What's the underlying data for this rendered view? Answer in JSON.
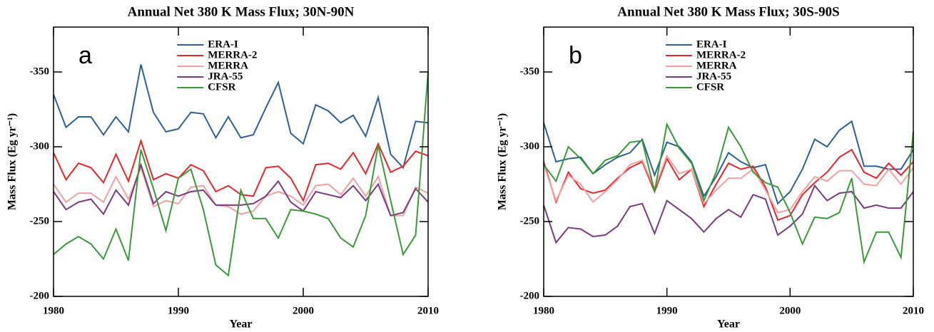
{
  "chart_data": [
    {
      "type": "line",
      "title": "Annual Net 380 K Mass Flux; 30N-90N",
      "annotation": "a",
      "x_label": "Year",
      "y_label": "Mass Flux (Eg yr⁻¹)",
      "xlim": [
        1980,
        2010
      ],
      "xticks": [
        1980,
        1990,
        2000,
        2010
      ],
      "ylim": [
        -200,
        -380
      ],
      "yticks": [
        -200,
        -250,
        -300,
        -350
      ],
      "legend": "upper center",
      "x": [
        1980,
        1981,
        1982,
        1983,
        1984,
        1985,
        1986,
        1987,
        1988,
        1989,
        1990,
        1991,
        1992,
        1993,
        1994,
        1995,
        1996,
        1997,
        1998,
        1999,
        2000,
        2001,
        2002,
        2003,
        2004,
        2005,
        2006,
        2007,
        2008,
        2009,
        2010
      ],
      "series": [
        {
          "name": "ERA-I",
          "color": "#2d6096",
          "values": [
            -335,
            -313,
            -320,
            -320,
            -308,
            -320,
            -310,
            -355,
            -323,
            -310,
            -312,
            -323,
            -322,
            -306,
            -320,
            -306,
            -308,
            -326,
            -343,
            -309,
            -302,
            -328,
            -324,
            -316,
            -321,
            -307,
            -333,
            -295,
            -286,
            -317,
            -316
          ]
        },
        {
          "name": "MERRA-2",
          "color": "#e8262b",
          "values": [
            -296,
            -278,
            -289,
            -286,
            -276,
            -295,
            -277,
            -304,
            -278,
            -282,
            -279,
            -288,
            -284,
            -270,
            -274,
            -268,
            -267,
            -286,
            -287,
            -279,
            -264,
            -288,
            -289,
            -285,
            -296,
            -282,
            -302,
            -283,
            -287,
            -297,
            -294
          ]
        },
        {
          "name": "MERRA",
          "color": "#f4a0a0",
          "values": [
            -275,
            -263,
            -269,
            -269,
            -263,
            -280,
            -265,
            -286,
            -260,
            -264,
            -262,
            -273,
            -274,
            -261,
            -260,
            -255,
            -257,
            -267,
            -270,
            -267,
            -261,
            -274,
            -275,
            -268,
            -279,
            -267,
            -280,
            -254,
            -254,
            -273,
            -269
          ]
        },
        {
          "name": "JRA-55",
          "color": "#7b3a7e",
          "values": [
            -270,
            -258,
            -263,
            -265,
            -255,
            -271,
            -261,
            -288,
            -262,
            -270,
            -267,
            -270,
            -271,
            -261,
            -261,
            -261,
            -262,
            -267,
            -277,
            -263,
            -257,
            -270,
            -268,
            -266,
            -274,
            -264,
            -275,
            -254,
            -256,
            -272,
            -263
          ]
        },
        {
          "name": "CFSR",
          "color": "#3a9a3a",
          "values": [
            -228,
            -235,
            -240,
            -235,
            -225,
            -245,
            -224,
            -298,
            -272,
            -244,
            -279,
            -285,
            -258,
            -221,
            -214,
            -271,
            -252,
            -252,
            -239,
            -258,
            -257,
            -255,
            -252,
            -239,
            -233,
            -254,
            -301,
            -264,
            -228,
            -241,
            -350
          ]
        }
      ]
    },
    {
      "type": "line",
      "title": "Annual Net 380 K Mass Flux; 30S-90S",
      "annotation": "b",
      "x_label": "Year",
      "y_label": "Mass Flux (Eg yr⁻¹)",
      "xlim": [
        1980,
        2010
      ],
      "xticks": [
        1980,
        1990,
        2000,
        2010
      ],
      "ylim": [
        -200,
        -380
      ],
      "yticks": [
        -200,
        -250,
        -300,
        -350
      ],
      "legend": "upper center",
      "x": [
        1980,
        1981,
        1982,
        1983,
        1984,
        1985,
        1986,
        1987,
        1988,
        1989,
        1990,
        1991,
        1992,
        1993,
        1994,
        1995,
        1996,
        1997,
        1998,
        1999,
        2000,
        2001,
        2002,
        2003,
        2004,
        2005,
        2006,
        2007,
        2008,
        2009,
        2010
      ],
      "series": [
        {
          "name": "ERA-I",
          "color": "#2d6096",
          "values": [
            -316,
            -290,
            -292,
            -293,
            -282,
            -288,
            -293,
            -296,
            -305,
            -281,
            -303,
            -300,
            -290,
            -267,
            -280,
            -296,
            -290,
            -286,
            -288,
            -262,
            -270,
            -285,
            -305,
            -300,
            -311,
            -317,
            -287,
            -287,
            -285,
            -285,
            -298
          ]
        },
        {
          "name": "MERRA-2",
          "color": "#e8262b",
          "values": [
            -290,
            -263,
            -283,
            -272,
            -269,
            -271,
            -279,
            -286,
            -290,
            -270,
            -292,
            -278,
            -285,
            -260,
            -275,
            -289,
            -285,
            -287,
            -273,
            -251,
            -254,
            -268,
            -276,
            -283,
            -293,
            -298,
            -283,
            -279,
            -289,
            -281,
            -290
          ]
        },
        {
          "name": "MERRA",
          "color": "#f4a0a0",
          "values": [
            -288,
            -264,
            -281,
            -275,
            -263,
            -270,
            -278,
            -288,
            -291,
            -272,
            -294,
            -282,
            -285,
            -262,
            -271,
            -279,
            -279,
            -285,
            -271,
            -256,
            -258,
            -270,
            -280,
            -277,
            -284,
            -284,
            -275,
            -274,
            -285,
            -275,
            -286
          ]
        },
        {
          "name": "JRA-55",
          "color": "#7b3a7e",
          "values": [
            -261,
            -236,
            -246,
            -245,
            -240,
            -241,
            -247,
            -260,
            -262,
            -242,
            -264,
            -258,
            -252,
            -243,
            -252,
            -258,
            -253,
            -268,
            -265,
            -241,
            -247,
            -255,
            -274,
            -264,
            -269,
            -270,
            -259,
            -261,
            -259,
            -259,
            -270
          ]
        },
        {
          "name": "CFSR",
          "color": "#3a9a3a",
          "values": [
            -288,
            -277,
            -300,
            -292,
            -282,
            -291,
            -294,
            -303,
            -304,
            -270,
            -315,
            -299,
            -289,
            -264,
            -283,
            -313,
            -300,
            -283,
            -276,
            -273,
            -256,
            -235,
            -253,
            -252,
            -256,
            -279,
            -223,
            -243,
            -243,
            -226,
            -310
          ]
        }
      ]
    }
  ]
}
